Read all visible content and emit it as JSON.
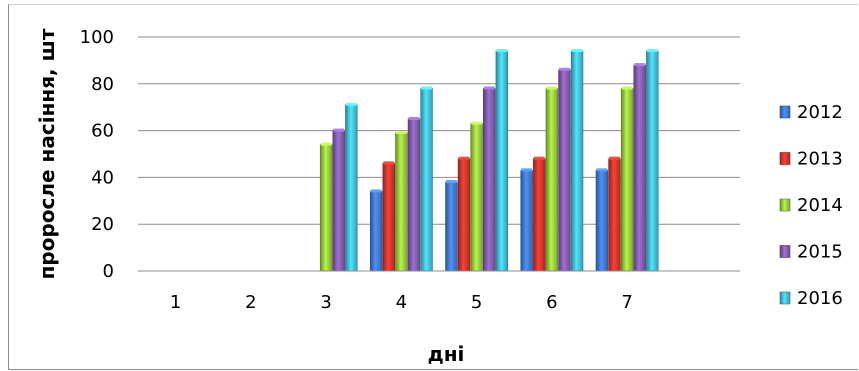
{
  "chart_data": {
    "type": "bar",
    "xlabel": "дні",
    "ylabel": "проросле насіння, шт",
    "categories": [
      "1",
      "2",
      "3",
      "4",
      "5",
      "6",
      "7"
    ],
    "ylim": [
      0,
      100
    ],
    "yticks": [
      0,
      20,
      40,
      60,
      80,
      100
    ],
    "grid": true,
    "legend_position": "right",
    "series": [
      {
        "name": "2012",
        "color": "#3d75c9",
        "values": [
          0,
          0,
          0,
          34,
          38,
          43,
          43
        ]
      },
      {
        "name": "2013",
        "color": "#c9332b",
        "values": [
          0,
          0,
          0,
          46,
          48,
          48,
          48
        ]
      },
      {
        "name": "2014",
        "color": "#92c43a",
        "values": [
          0,
          0,
          54,
          59,
          63,
          78,
          78
        ]
      },
      {
        "name": "2015",
        "color": "#7e59a8",
        "values": [
          0,
          0,
          60,
          65,
          78,
          86,
          88
        ]
      },
      {
        "name": "2016",
        "color": "#3fb7cf",
        "values": [
          0,
          0,
          71,
          78,
          94,
          94,
          94
        ]
      }
    ]
  }
}
